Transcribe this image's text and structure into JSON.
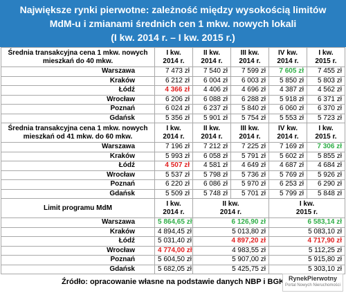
{
  "title": [
    "Największe rynki pierwotne: zależność między wysokością limitów",
    "MdM-u i zmianami średnich cen 1 mkw. nowych lokali",
    "(I kw. 2014 r. – I kw. 2015 r.)"
  ],
  "sections": [
    {
      "header": "Średnia transakcyjna cena 1 mkw. nowych mieszkań do 40 mkw.",
      "columns": [
        [
          "I kw.",
          "2014 r."
        ],
        [
          "II kw.",
          "2014 r."
        ],
        [
          "III kw.",
          "2014 r."
        ],
        [
          "IV kw.",
          "2014 r."
        ],
        [
          "I kw.",
          "2015 r."
        ]
      ],
      "rows": [
        {
          "city": "Warszawa",
          "values": [
            "7 473 zł",
            "7 540 zł",
            "7 599 zł",
            "7 605 zł",
            "7 455 zł"
          ],
          "highlight": {
            "3": "green"
          }
        },
        {
          "city": "Kraków",
          "values": [
            "6 212 zł",
            "6 004 zł",
            "6 003 zł",
            "5 850 zł",
            "5 803 zł"
          ]
        },
        {
          "city": "Łódź",
          "values": [
            "4 366 zł",
            "4 406 zł",
            "4 696 zł",
            "4 387 zł",
            "4 562 zł"
          ],
          "highlight": {
            "0": "red"
          }
        },
        {
          "city": "Wrocław",
          "values": [
            "6 206 zł",
            "6 088 zł",
            "6 288 zł",
            "5 918 zł",
            "6 371 zł"
          ]
        },
        {
          "city": "Poznań",
          "values": [
            "6 024 zł",
            "6 237 zł",
            "5 840 zł",
            "6 060 zł",
            "6 370 zł"
          ]
        },
        {
          "city": "Gdańsk",
          "values": [
            "5 356 zł",
            "5 901 zł",
            "5 754 zł",
            "5 553 zł",
            "5 723 zł"
          ]
        }
      ]
    },
    {
      "header": "Średnia transakcyjna cena 1 mkw. nowych mieszkań od 41 mkw. do 60 mkw.",
      "columns": [
        [
          "I kw.",
          "2014 r."
        ],
        [
          "II kw.",
          "2014 r."
        ],
        [
          "III kw.",
          "2014 r."
        ],
        [
          "IV kw.",
          "2014 r."
        ],
        [
          "I kw.",
          "2015 r."
        ]
      ],
      "rows": [
        {
          "city": "Warszawa",
          "values": [
            "7 196 zł",
            "7 212 zł",
            "7 225 zł",
            "7 169 zł",
            "7 306 zł"
          ],
          "highlight": {
            "4": "green"
          }
        },
        {
          "city": "Kraków",
          "values": [
            "5 993 zł",
            "6 058 zł",
            "5 791 zł",
            "5 602 zł",
            "5 855 zł"
          ]
        },
        {
          "city": "Łódź",
          "values": [
            "4 507 zł",
            "4 581 zł",
            "4 649 zł",
            "4 687 zł",
            "4 684 zł"
          ],
          "highlight": {
            "0": "red"
          }
        },
        {
          "city": "Wrocław",
          "values": [
            "5 537 zł",
            "5 798 zł",
            "5 736 zł",
            "5 769 zł",
            "5 926 zł"
          ]
        },
        {
          "city": "Poznań",
          "values": [
            "6 220 zł",
            "6 086 zł",
            "5 970 zł",
            "6 253 zł",
            "6 290 zł"
          ]
        },
        {
          "city": "Gdańsk",
          "values": [
            "5 509 zł",
            "5 748 zł",
            "5 701 zł",
            "5 799 zł",
            "5 848 zł"
          ]
        }
      ]
    },
    {
      "header": "Limit programu MdM",
      "columns": [
        [
          "I kw.",
          "2014 r."
        ],
        [
          "II kw.",
          "2014 r."
        ],
        [
          "I kw.",
          "2015 r."
        ]
      ],
      "rows": [
        {
          "city": "Warszawa",
          "values": [
            "5 864,65 zł",
            "6 126,90 zł",
            "6 583,14 zł"
          ],
          "highlight": {
            "0": "green",
            "1": "green",
            "2": "green"
          }
        },
        {
          "city": "Kraków",
          "values": [
            "4 894,45 zł",
            "5 013,80 zł",
            "5 083,10 zł"
          ]
        },
        {
          "city": "Łódź",
          "values": [
            "5 031,40 zł",
            "4 897,20 zł",
            "4 717,90 zł"
          ],
          "highlight": {
            "1": "red",
            "2": "red"
          }
        },
        {
          "city": "Wrocław",
          "values": [
            "4 774,00 zł",
            "4 983,55 zł",
            "5 112,25 zł"
          ],
          "highlight": {
            "0": "red"
          }
        },
        {
          "city": "Poznań",
          "values": [
            "5 604,50 zł",
            "5 907,00 zł",
            "5 915,80 zł"
          ]
        },
        {
          "city": "Gdańsk",
          "values": [
            "5 682,05 zł",
            "5 425,75 zł",
            "5 303,10 zł"
          ]
        }
      ]
    }
  ],
  "source": "Źródło: opracowanie własne na podstawie danych NBP i BGK",
  "logo": {
    "name": "RynekPierwotny",
    "tagline": "Portal Nowych Nieruchomości"
  }
}
